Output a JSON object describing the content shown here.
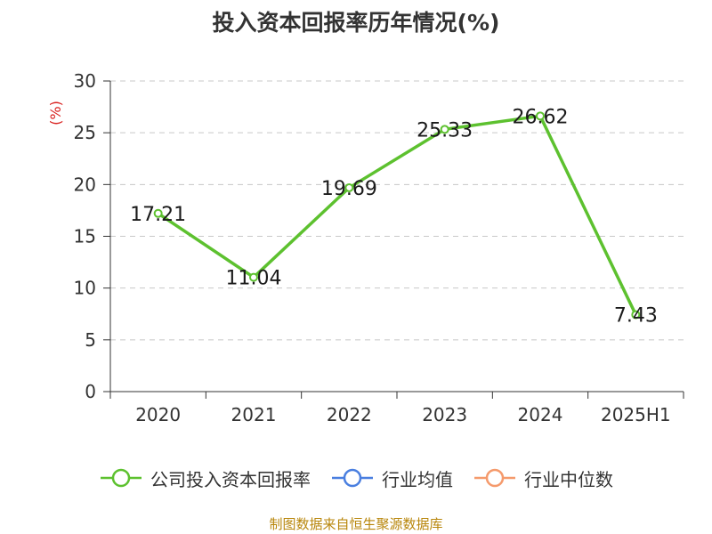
{
  "title": "投入资本回报率历年情况(%)",
  "source": "制图数据来自恒生聚源数据库",
  "chart_data": {
    "type": "line",
    "categories": [
      "2020",
      "2021",
      "2022",
      "2023",
      "2024",
      "2025H1"
    ],
    "series": [
      {
        "name": "公司投入资本回报率",
        "values": [
          17.21,
          11.04,
          19.69,
          25.33,
          26.62,
          7.43
        ],
        "color": "#5dc12f"
      }
    ],
    "ylim": [
      0,
      30
    ],
    "yticks": [
      0,
      5,
      10,
      15,
      20,
      25,
      30
    ],
    "ylabel": "(%)",
    "ylabel_color": "#d9211f",
    "grid": true,
    "legend_position": "bottom"
  },
  "legend": [
    {
      "label": "公司投入资本回报率",
      "color": "#5dc12f"
    },
    {
      "label": "行业均值",
      "color": "#4a7fe0"
    },
    {
      "label": "行业中位数",
      "color": "#f59a6c"
    }
  ]
}
